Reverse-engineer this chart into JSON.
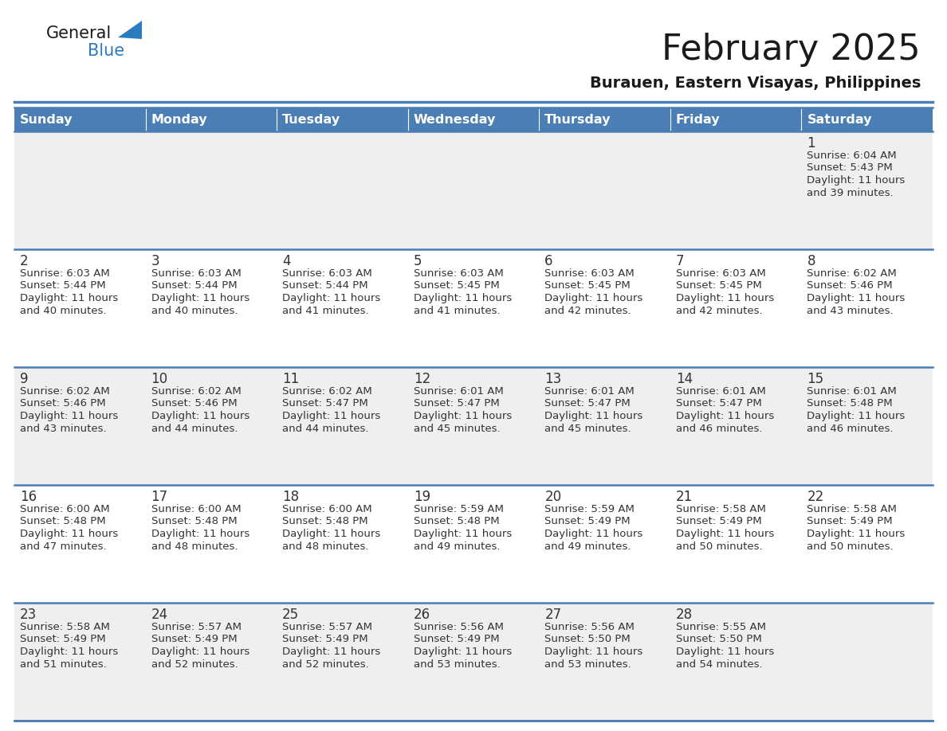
{
  "title": "February 2025",
  "subtitle": "Burauen, Eastern Visayas, Philippines",
  "days_of_week": [
    "Sunday",
    "Monday",
    "Tuesday",
    "Wednesday",
    "Thursday",
    "Friday",
    "Saturday"
  ],
  "header_bg": "#4a7eb5",
  "header_text": "#ffffff",
  "cell_bg_light": "#efefef",
  "cell_bg_white": "#ffffff",
  "day_num_color": "#333333",
  "info_text_color": "#333333",
  "title_color": "#1a1a1a",
  "subtitle_color": "#1a1a1a",
  "logo_general_color": "#1a1a1a",
  "logo_blue_color": "#2b7bbf",
  "divider_color": "#4a7eb5",
  "calendar_data": [
    [
      null,
      null,
      null,
      null,
      null,
      null,
      1
    ],
    [
      2,
      3,
      4,
      5,
      6,
      7,
      8
    ],
    [
      9,
      10,
      11,
      12,
      13,
      14,
      15
    ],
    [
      16,
      17,
      18,
      19,
      20,
      21,
      22
    ],
    [
      23,
      24,
      25,
      26,
      27,
      28,
      null
    ]
  ],
  "sunrise": {
    "1": "6:04 AM",
    "2": "6:03 AM",
    "3": "6:03 AM",
    "4": "6:03 AM",
    "5": "6:03 AM",
    "6": "6:03 AM",
    "7": "6:03 AM",
    "8": "6:02 AM",
    "9": "6:02 AM",
    "10": "6:02 AM",
    "11": "6:02 AM",
    "12": "6:01 AM",
    "13": "6:01 AM",
    "14": "6:01 AM",
    "15": "6:01 AM",
    "16": "6:00 AM",
    "17": "6:00 AM",
    "18": "6:00 AM",
    "19": "5:59 AM",
    "20": "5:59 AM",
    "21": "5:58 AM",
    "22": "5:58 AM",
    "23": "5:58 AM",
    "24": "5:57 AM",
    "25": "5:57 AM",
    "26": "5:56 AM",
    "27": "5:56 AM",
    "28": "5:55 AM"
  },
  "sunset": {
    "1": "5:43 PM",
    "2": "5:44 PM",
    "3": "5:44 PM",
    "4": "5:44 PM",
    "5": "5:45 PM",
    "6": "5:45 PM",
    "7": "5:45 PM",
    "8": "5:46 PM",
    "9": "5:46 PM",
    "10": "5:46 PM",
    "11": "5:47 PM",
    "12": "5:47 PM",
    "13": "5:47 PM",
    "14": "5:47 PM",
    "15": "5:48 PM",
    "16": "5:48 PM",
    "17": "5:48 PM",
    "18": "5:48 PM",
    "19": "5:48 PM",
    "20": "5:49 PM",
    "21": "5:49 PM",
    "22": "5:49 PM",
    "23": "5:49 PM",
    "24": "5:49 PM",
    "25": "5:49 PM",
    "26": "5:49 PM",
    "27": "5:50 PM",
    "28": "5:50 PM"
  },
  "daylight": {
    "1": [
      "Daylight: 11 hours",
      "and 39 minutes."
    ],
    "2": [
      "Daylight: 11 hours",
      "and 40 minutes."
    ],
    "3": [
      "Daylight: 11 hours",
      "and 40 minutes."
    ],
    "4": [
      "Daylight: 11 hours",
      "and 41 minutes."
    ],
    "5": [
      "Daylight: 11 hours",
      "and 41 minutes."
    ],
    "6": [
      "Daylight: 11 hours",
      "and 42 minutes."
    ],
    "7": [
      "Daylight: 11 hours",
      "and 42 minutes."
    ],
    "8": [
      "Daylight: 11 hours",
      "and 43 minutes."
    ],
    "9": [
      "Daylight: 11 hours",
      "and 43 minutes."
    ],
    "10": [
      "Daylight: 11 hours",
      "and 44 minutes."
    ],
    "11": [
      "Daylight: 11 hours",
      "and 44 minutes."
    ],
    "12": [
      "Daylight: 11 hours",
      "and 45 minutes."
    ],
    "13": [
      "Daylight: 11 hours",
      "and 45 minutes."
    ],
    "14": [
      "Daylight: 11 hours",
      "and 46 minutes."
    ],
    "15": [
      "Daylight: 11 hours",
      "and 46 minutes."
    ],
    "16": [
      "Daylight: 11 hours",
      "and 47 minutes."
    ],
    "17": [
      "Daylight: 11 hours",
      "and 48 minutes."
    ],
    "18": [
      "Daylight: 11 hours",
      "and 48 minutes."
    ],
    "19": [
      "Daylight: 11 hours",
      "and 49 minutes."
    ],
    "20": [
      "Daylight: 11 hours",
      "and 49 minutes."
    ],
    "21": [
      "Daylight: 11 hours",
      "and 50 minutes."
    ],
    "22": [
      "Daylight: 11 hours",
      "and 50 minutes."
    ],
    "23": [
      "Daylight: 11 hours",
      "and 51 minutes."
    ],
    "24": [
      "Daylight: 11 hours",
      "and 52 minutes."
    ],
    "25": [
      "Daylight: 11 hours",
      "and 52 minutes."
    ],
    "26": [
      "Daylight: 11 hours",
      "and 53 minutes."
    ],
    "27": [
      "Daylight: 11 hours",
      "and 53 minutes."
    ],
    "28": [
      "Daylight: 11 hours",
      "and 54 minutes."
    ]
  }
}
